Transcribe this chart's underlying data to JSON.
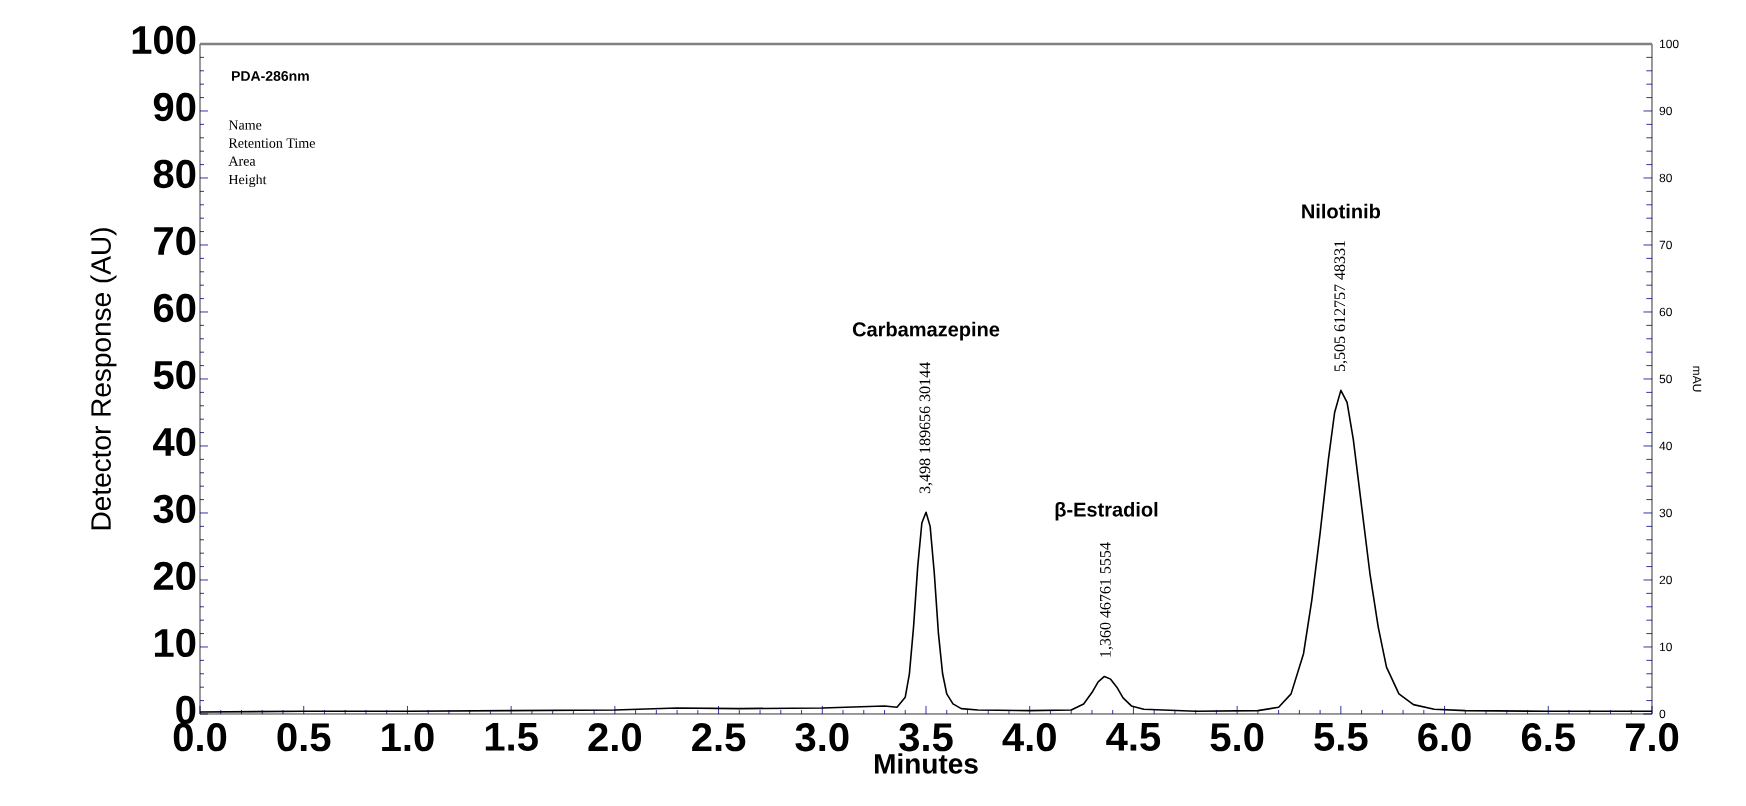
{
  "chart_data": {
    "type": "line",
    "title": "PDA-286nm",
    "xlabel": "Minutes",
    "ylabel": "Detector Response (AU)",
    "y2label": "mAU",
    "annotations": [
      "Name",
      "Retention Time",
      "Area",
      "Height",
      {
        "text": "3,498 189656 30144",
        "x": 3.5,
        "y": 30.1
      },
      "Carbamazepine",
      {
        "text": "1,360 46761 5554",
        "x": 4.37,
        "y": 5.6
      },
      "β-Estradiol",
      {
        "text": "5,505 612757 48331",
        "x": 5.5,
        "y": 48.3
      },
      "Nilotinib"
    ],
    "xlim": [
      0,
      7
    ],
    "ylim": [
      0,
      100
    ],
    "y2lim": [
      0,
      100
    ],
    "xticks": [
      {
        "value": 0,
        "label": "0.0"
      },
      {
        "value": 0.5,
        "label": "0.5"
      },
      {
        "value": 1,
        "label": "1.0"
      },
      {
        "value": 1.5,
        "label": "1.5"
      },
      {
        "value": 2,
        "label": "2.0"
      },
      {
        "value": 2.5,
        "label": "2.5"
      },
      {
        "value": 3,
        "label": "3.0"
      },
      {
        "value": 3.5,
        "label": "3.5"
      },
      {
        "value": 4,
        "label": "4.0"
      },
      {
        "value": 4.5,
        "label": "4.5"
      },
      {
        "value": 5,
        "label": "5.0"
      },
      {
        "value": 5.5,
        "label": "5.5"
      },
      {
        "value": 6,
        "label": "6.0"
      },
      {
        "value": 6.5,
        "label": "6.5"
      },
      {
        "value": 7,
        "label": "7.0"
      }
    ],
    "yticks": [
      0,
      10,
      20,
      30,
      40,
      50,
      60,
      70,
      80,
      90,
      100
    ],
    "y2ticks": [
      0,
      10,
      20,
      30,
      40,
      50,
      60,
      70,
      80,
      90,
      100
    ],
    "grid": false,
    "marker": "none",
    "line_style": "solid",
    "series": [
      {
        "color": "#000000",
        "x": [
          0,
          0.5,
          1.0,
          1.5,
          2.0,
          2.3,
          2.6,
          3.0,
          3.3,
          3.36,
          3.4,
          3.42,
          3.44,
          3.46,
          3.48,
          3.5,
          3.52,
          3.54,
          3.56,
          3.58,
          3.6,
          3.63,
          3.67,
          3.75,
          4.0,
          4.2,
          4.26,
          4.3,
          4.33,
          4.36,
          4.39,
          4.42,
          4.45,
          4.49,
          4.55,
          4.8,
          5.1,
          5.2,
          5.26,
          5.32,
          5.36,
          5.4,
          5.44,
          5.47,
          5.5,
          5.53,
          5.56,
          5.6,
          5.64,
          5.68,
          5.72,
          5.78,
          5.85,
          5.95,
          6.1,
          6.5,
          7.0
        ],
        "values": [
          0.3,
          0.4,
          0.4,
          0.5,
          0.6,
          0.9,
          0.8,
          0.9,
          1.2,
          1.0,
          2.5,
          6,
          13,
          22,
          28.5,
          30.1,
          28,
          21,
          12,
          6,
          3,
          1.5,
          0.8,
          0.6,
          0.5,
          0.6,
          1.5,
          3.2,
          4.8,
          5.6,
          5.2,
          4,
          2.4,
          1.2,
          0.7,
          0.4,
          0.5,
          1,
          3,
          9,
          17,
          27,
          38,
          45,
          48.3,
          46.5,
          41,
          31,
          21,
          13,
          7,
          3,
          1.4,
          0.7,
          0.5,
          0.4,
          0.4
        ]
      }
    ]
  }
}
